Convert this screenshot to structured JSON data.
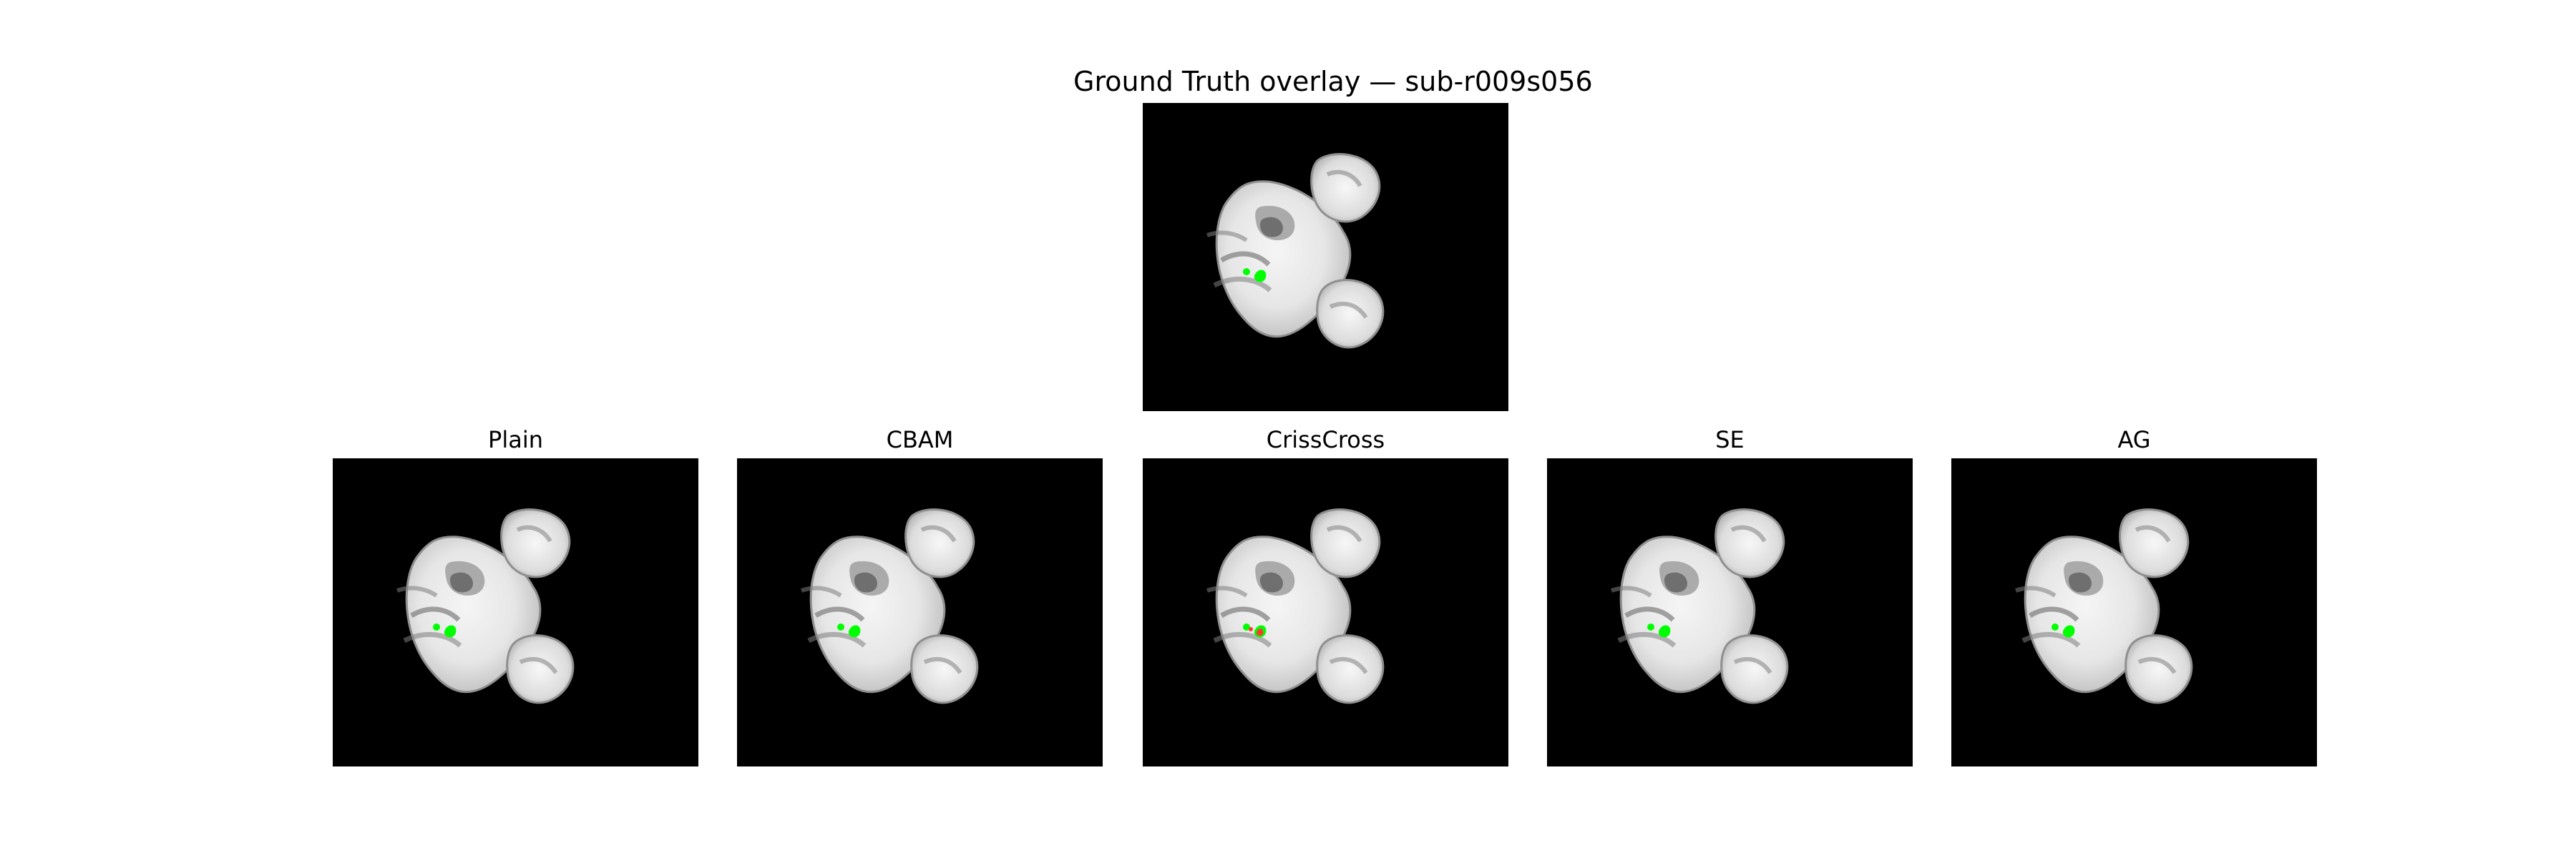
{
  "figure": {
    "title": "Ground Truth overlay — sub-r009s056",
    "panels": [
      {
        "label": "Plain",
        "overlay": "green"
      },
      {
        "label": "CBAM",
        "overlay": "green"
      },
      {
        "label": "CrissCross",
        "overlay": "mixed"
      },
      {
        "label": "SE",
        "overlay": "green"
      },
      {
        "label": "AG",
        "overlay": "green"
      }
    ]
  },
  "colors": {
    "background": "#000000",
    "overlay_truth": "#00ff00",
    "overlay_pred_error": "#ff3b30"
  }
}
